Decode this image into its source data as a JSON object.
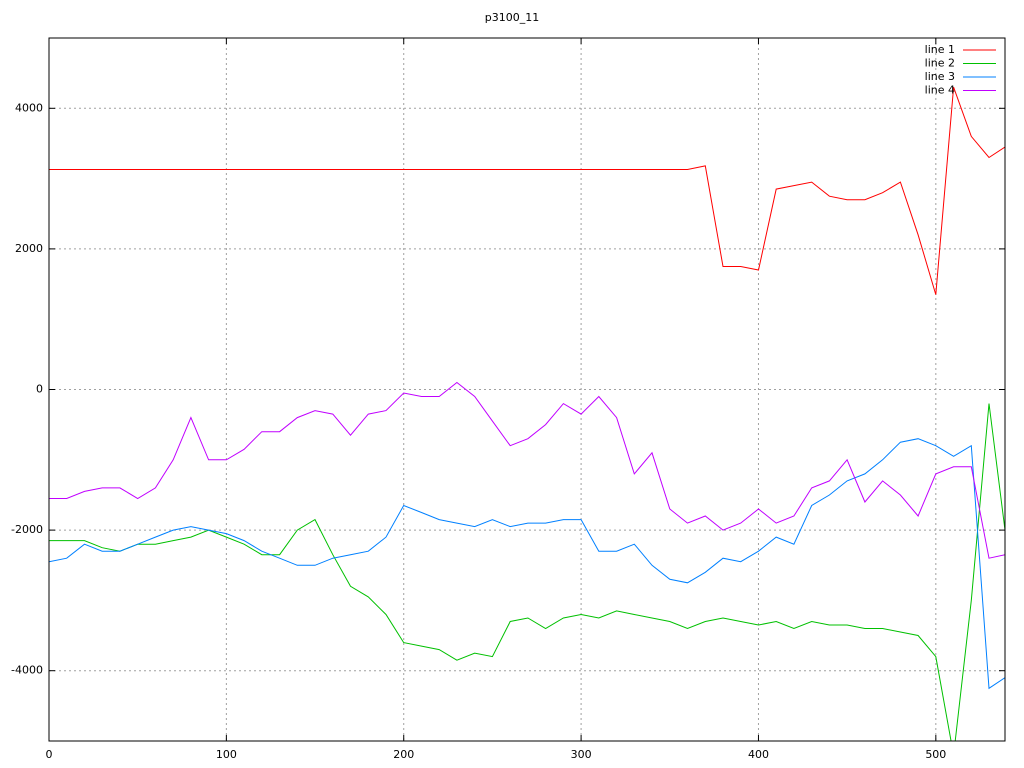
{
  "chart_data": {
    "type": "line",
    "title": "p3100_11",
    "x": [
      0,
      10,
      20,
      30,
      40,
      50,
      60,
      70,
      80,
      90,
      100,
      110,
      120,
      130,
      140,
      150,
      160,
      170,
      180,
      190,
      200,
      210,
      220,
      230,
      240,
      250,
      260,
      270,
      280,
      290,
      300,
      310,
      320,
      330,
      340,
      350,
      360,
      370,
      380,
      390,
      400,
      410,
      420,
      430,
      440,
      450,
      460,
      470,
      480,
      490,
      500,
      510,
      520,
      530,
      539
    ],
    "series": [
      {
        "name": "line 1",
        "color": "#ff0000",
        "values": [
          3130,
          3130,
          3130,
          3130,
          3130,
          3130,
          3130,
          3130,
          3130,
          3130,
          3130,
          3130,
          3130,
          3130,
          3130,
          3130,
          3130,
          3130,
          3130,
          3130,
          3130,
          3130,
          3130,
          3130,
          3130,
          3130,
          3130,
          3130,
          3130,
          3130,
          3130,
          3130,
          3130,
          3130,
          3130,
          3130,
          3130,
          3180,
          1750,
          1750,
          1700,
          2850,
          2900,
          2950,
          2750,
          2700,
          2700,
          2800,
          2950,
          2200,
          1350,
          4300,
          3600,
          3300,
          3450
        ]
      },
      {
        "name": "line 2",
        "color": "#00c000",
        "values": [
          -2150,
          -2150,
          -2150,
          -2250,
          -2300,
          -2200,
          -2200,
          -2150,
          -2100,
          -2000,
          -2100,
          -2200,
          -2350,
          -2350,
          -2000,
          -1850,
          -2350,
          -2800,
          -2950,
          -3200,
          -3600,
          -3650,
          -3700,
          -3850,
          -3750,
          -3800,
          -3300,
          -3250,
          -3400,
          -3250,
          -3200,
          -3250,
          -3150,
          -3200,
          -3250,
          -3300,
          -3400,
          -3300,
          -3250,
          -3300,
          -3350,
          -3300,
          -3400,
          -3300,
          -3350,
          -3350,
          -3400,
          -3400,
          -3450,
          -3500,
          -3800,
          -5200,
          -3000,
          -200,
          -2000
        ]
      },
      {
        "name": "line 3",
        "color": "#0080ff",
        "values": [
          -2450,
          -2400,
          -2200,
          -2300,
          -2300,
          -2200,
          -2100,
          -2000,
          -1950,
          -2000,
          -2050,
          -2150,
          -2300,
          -2400,
          -2500,
          -2500,
          -2400,
          -2350,
          -2300,
          -2100,
          -1650,
          -1750,
          -1850,
          -1900,
          -1950,
          -1850,
          -1950,
          -1900,
          -1900,
          -1850,
          -1850,
          -2300,
          -2300,
          -2200,
          -2500,
          -2700,
          -2750,
          -2600,
          -2400,
          -2450,
          -2300,
          -2100,
          -2200,
          -1650,
          -1500,
          -1300,
          -1200,
          -1000,
          -750,
          -700,
          -800,
          -950,
          -800,
          -4250,
          -4100
        ]
      },
      {
        "name": "line 4",
        "color": "#c000ff",
        "values": [
          -1550,
          -1550,
          -1450,
          -1400,
          -1400,
          -1550,
          -1400,
          -1000,
          -400,
          -1000,
          -1000,
          -850,
          -600,
          -600,
          -400,
          -300,
          -350,
          -650,
          -350,
          -300,
          -50,
          -100,
          -100,
          100,
          -100,
          -450,
          -800,
          -700,
          -500,
          -200,
          -350,
          -100,
          -400,
          -1200,
          -900,
          -1700,
          -1900,
          -1800,
          -2000,
          -1900,
          -1700,
          -1900,
          -1800,
          -1400,
          -1300,
          -1000,
          -1600,
          -1300,
          -1500,
          -1800,
          -1200,
          -1100,
          -1100,
          -2400,
          -2350
        ]
      }
    ],
    "xlim": [
      0,
      539
    ],
    "ylim": [
      -5000,
      5000
    ],
    "xticks": [
      0,
      100,
      200,
      300,
      400,
      500
    ],
    "yticks": [
      -4000,
      -2000,
      0,
      2000,
      4000
    ],
    "grid": true,
    "legend": "top-right"
  }
}
